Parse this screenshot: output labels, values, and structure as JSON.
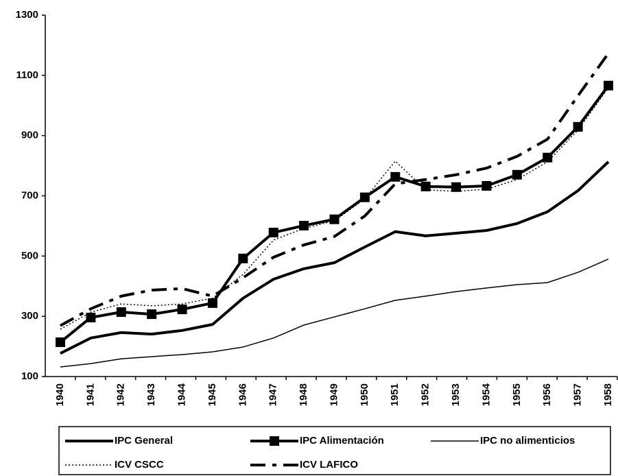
{
  "chart_data": {
    "type": "line",
    "categories": [
      "1940",
      "1941",
      "1942",
      "1943",
      "1944",
      "1945",
      "1946",
      "1947",
      "1948",
      "1949",
      "1950",
      "1951",
      "1952",
      "1953",
      "1954",
      "1955",
      "1956",
      "1957",
      "1958"
    ],
    "ylim": [
      100,
      1300
    ],
    "yticks": [
      100,
      300,
      500,
      700,
      900,
      1100,
      1300
    ],
    "series": [
      {
        "name": "IPC General",
        "color": "#000000",
        "width": 4,
        "style": "solid",
        "values": [
          177,
          228,
          246,
          241,
          253,
          273,
          360,
          423,
          458,
          478,
          530,
          581,
          567,
          576,
          585,
          608,
          647,
          717,
          813
        ]
      },
      {
        "name": "IPC Alimentación",
        "color": "#000000",
        "width": 4,
        "style": "solid",
        "marker": "square",
        "values": [
          214,
          296,
          314,
          307,
          323,
          344,
          492,
          578,
          601,
          622,
          695,
          763,
          731,
          729,
          733,
          770,
          827,
          929,
          1066
        ]
      },
      {
        "name": "IPC no alimenticios",
        "color": "#000000",
        "width": 1.5,
        "style": "solid",
        "values": [
          132,
          143,
          159,
          166,
          173,
          182,
          198,
          228,
          271,
          298,
          325,
          353,
          367,
          382,
          394,
          405,
          412,
          446,
          490
        ]
      },
      {
        "name": "ICV CSCC",
        "color": "#000000",
        "width": 1.5,
        "style": "dotted",
        "values": [
          257,
          314,
          341,
          335,
          341,
          360,
          439,
          553,
          592,
          617,
          690,
          815,
          720,
          715,
          722,
          754,
          813,
          918,
          1059
        ]
      },
      {
        "name": "ICV LAFICO",
        "color": "#000000",
        "width": 4,
        "style": "dashdot",
        "values": [
          269,
          325,
          367,
          387,
          392,
          367,
          428,
          496,
          537,
          565,
          633,
          740,
          754,
          770,
          792,
          831,
          888,
          1032,
          1173
        ]
      }
    ]
  }
}
